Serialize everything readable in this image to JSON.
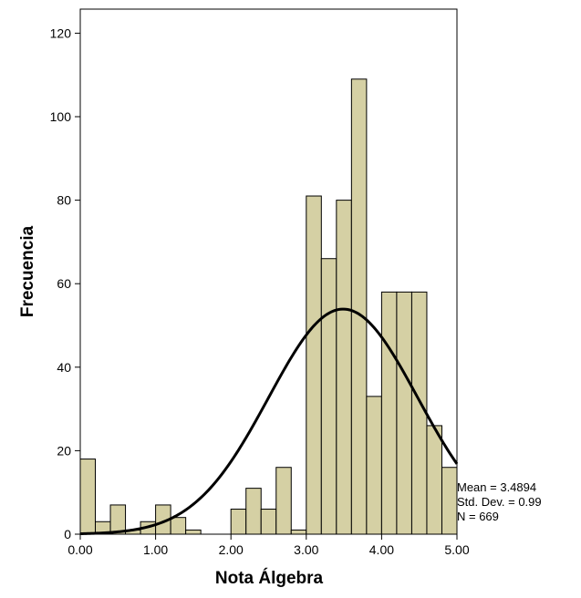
{
  "colors": {
    "bar_fill": "#d5d0a4",
    "bar_stroke": "#000000",
    "curve": "#000000",
    "background": "#ffffff"
  },
  "chart_data": {
    "type": "bar",
    "subtype": "histogram-with-normal-curve",
    "title": "",
    "xlabel": "Nota Álgebra",
    "ylabel": "Frecuencia",
    "xlim": [
      0,
      5
    ],
    "ylim": [
      0,
      125
    ],
    "grid": false,
    "bin_width": 0.2,
    "bins": [
      {
        "start": 0.0,
        "end": 0.2,
        "count": 18
      },
      {
        "start": 0.2,
        "end": 0.4,
        "count": 3
      },
      {
        "start": 0.4,
        "end": 0.6,
        "count": 7
      },
      {
        "start": 0.6,
        "end": 0.8,
        "count": 1
      },
      {
        "start": 0.8,
        "end": 1.0,
        "count": 3
      },
      {
        "start": 1.0,
        "end": 1.2,
        "count": 7
      },
      {
        "start": 1.2,
        "end": 1.4,
        "count": 4
      },
      {
        "start": 1.4,
        "end": 1.6,
        "count": 1
      },
      {
        "start": 1.6,
        "end": 1.8,
        "count": 0
      },
      {
        "start": 1.8,
        "end": 2.0,
        "count": 0
      },
      {
        "start": 2.0,
        "end": 2.2,
        "count": 6
      },
      {
        "start": 2.2,
        "end": 2.4,
        "count": 11
      },
      {
        "start": 2.4,
        "end": 2.6,
        "count": 6
      },
      {
        "start": 2.6,
        "end": 2.8,
        "count": 16
      },
      {
        "start": 2.8,
        "end": 3.0,
        "count": 1
      },
      {
        "start": 3.0,
        "end": 3.2,
        "count": 81
      },
      {
        "start": 3.2,
        "end": 3.4,
        "count": 66
      },
      {
        "start": 3.4,
        "end": 3.6,
        "count": 80
      },
      {
        "start": 3.6,
        "end": 3.8,
        "count": 109
      },
      {
        "start": 3.8,
        "end": 4.0,
        "count": 33
      },
      {
        "start": 4.0,
        "end": 4.2,
        "count": 58
      },
      {
        "start": 4.2,
        "end": 4.4,
        "count": 58
      },
      {
        "start": 4.4,
        "end": 4.6,
        "count": 58
      },
      {
        "start": 4.6,
        "end": 4.8,
        "count": 26
      },
      {
        "start": 4.8,
        "end": 5.0,
        "count": 16
      }
    ],
    "x_ticks": [
      "0.00",
      "1.00",
      "2.00",
      "3.00",
      "4.00",
      "5.00"
    ],
    "y_ticks": [
      "0",
      "20",
      "40",
      "60",
      "80",
      "100",
      "120"
    ],
    "normal_curve": {
      "mean": 3.4894,
      "std": 0.99,
      "n": 669
    },
    "stats_text": [
      "Mean = 3.4894",
      "Std. Dev. = 0.99",
      "N = 669"
    ]
  }
}
